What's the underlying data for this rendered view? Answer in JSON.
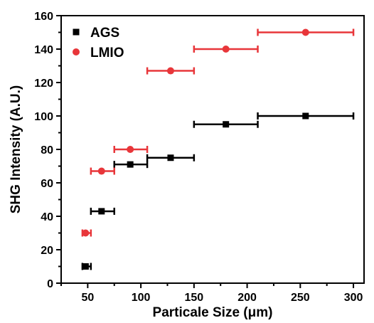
{
  "chart_data": {
    "type": "scatter",
    "title": "",
    "xlabel": "Particale Size (μm)",
    "ylabel": "SHG Intensity (A.U.)",
    "xlim": [
      25,
      310
    ],
    "ylim": [
      0,
      160
    ],
    "xticks": [
      50,
      100,
      150,
      200,
      250,
      300
    ],
    "yticks": [
      0,
      20,
      40,
      60,
      80,
      100,
      120,
      140,
      160
    ],
    "grid": false,
    "legend": "top-left",
    "series": [
      {
        "name": "AGS",
        "marker": "square",
        "color": "#000000",
        "points": [
          {
            "x": 48,
            "y": 10,
            "xmin": 45,
            "xmax": 53
          },
          {
            "x": 63,
            "y": 43,
            "xmin": 53,
            "xmax": 75
          },
          {
            "x": 90,
            "y": 71,
            "xmin": 75,
            "xmax": 106
          },
          {
            "x": 128,
            "y": 75,
            "xmin": 106,
            "xmax": 150
          },
          {
            "x": 180,
            "y": 95,
            "xmin": 150,
            "xmax": 210
          },
          {
            "x": 255,
            "y": 100,
            "xmin": 210,
            "xmax": 300
          }
        ]
      },
      {
        "name": "LMIO",
        "marker": "circle",
        "color": "#e8363a",
        "points": [
          {
            "x": 48,
            "y": 30,
            "xmin": 45,
            "xmax": 53
          },
          {
            "x": 63,
            "y": 67,
            "xmin": 53,
            "xmax": 75
          },
          {
            "x": 90,
            "y": 80,
            "xmin": 75,
            "xmax": 106
          },
          {
            "x": 128,
            "y": 127,
            "xmin": 106,
            "xmax": 150
          },
          {
            "x": 180,
            "y": 140,
            "xmin": 150,
            "xmax": 210
          },
          {
            "x": 255,
            "y": 150,
            "xmin": 210,
            "xmax": 300
          }
        ]
      }
    ]
  }
}
